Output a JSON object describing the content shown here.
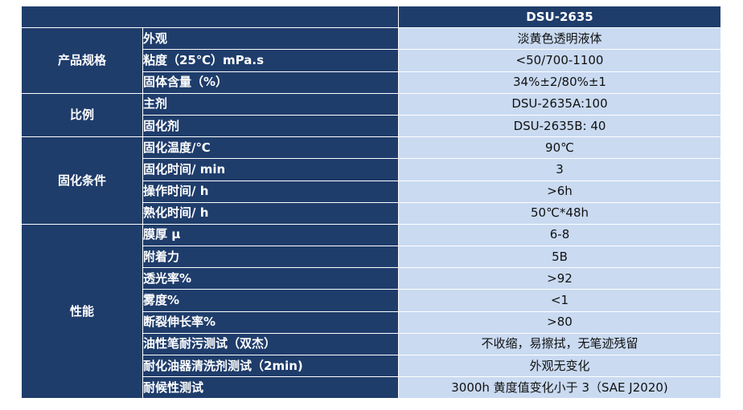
{
  "header": {
    "product": "DSU-2635"
  },
  "groups": [
    {
      "name": "产品规格",
      "rows": [
        {
          "param": "外观",
          "value": "淡黄色透明液体"
        },
        {
          "param": "粘度（25℃）mPa.s",
          "value": "<50/700-1100"
        },
        {
          "param": "固体含量（%）",
          "value": "34%±2/80%±1"
        }
      ]
    },
    {
      "name": "比例",
      "rows": [
        {
          "param": "主剂",
          "value": "DSU-2635A:100"
        },
        {
          "param": "固化剂",
          "value": "DSU-2635B: 40"
        }
      ]
    },
    {
      "name": "固化条件",
      "rows": [
        {
          "param": "固化温度/℃",
          "value": "90℃"
        },
        {
          "param": "固化时间/ min",
          "value": "3"
        },
        {
          "param": "操作时间/ h",
          "value": ">6h"
        },
        {
          "param": "熟化时间/ h",
          "value": "50℃*48h"
        }
      ]
    },
    {
      "name": "性能",
      "rows": [
        {
          "param": "膜厚 μ",
          "value": "6-8"
        },
        {
          "param": "附着力",
          "value": "5B"
        },
        {
          "param": "透光率%",
          "value": ">92"
        },
        {
          "param": "雾度%",
          "value": "<1"
        },
        {
          "param": "断裂伸长率%",
          "value": ">80"
        },
        {
          "param": "油性笔耐污测试（双杰）",
          "value": "不收缩，易擦拭，无笔迹残留"
        },
        {
          "param": "耐化油器清洗剂测试（2min)",
          "value": "外观无变化"
        },
        {
          "param": "耐候性测试",
          "value": "3000h 黄度值变化小于 3（SAE J2020)"
        }
      ]
    }
  ]
}
